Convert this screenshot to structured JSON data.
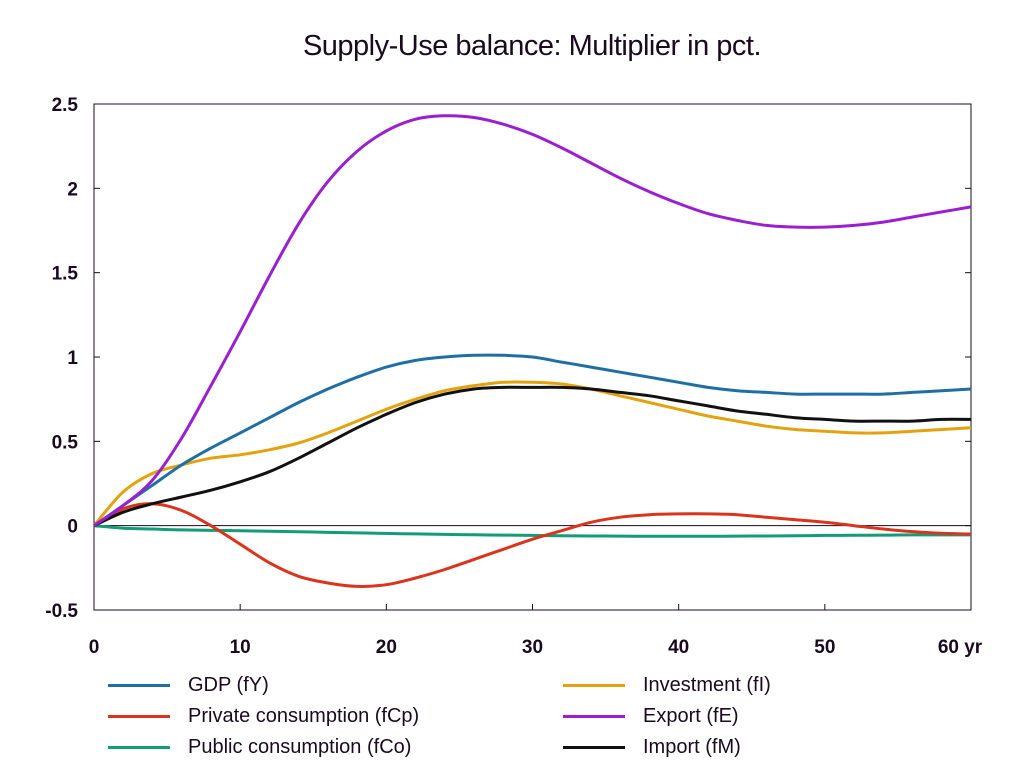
{
  "chart_data": {
    "type": "line",
    "title": "Supply-Use balance: Multiplier in pct.",
    "xlabel": "",
    "ylabel": "",
    "xlim": [
      0,
      60
    ],
    "ylim": [
      -0.5,
      2.5
    ],
    "x_ticks": [
      0,
      10,
      20,
      30,
      40,
      50,
      60
    ],
    "x_tick_labels": [
      "0",
      "10",
      "20",
      "30",
      "40",
      "50",
      "60 yr"
    ],
    "y_ticks": [
      -0.5,
      0,
      0.5,
      1,
      1.5,
      2,
      2.5
    ],
    "y_tick_labels": [
      "-0.5",
      "0",
      "0.5",
      "1",
      "1.5",
      "2",
      "2.5"
    ],
    "grid": false,
    "legend_position": "bottom",
    "zero_line": true,
    "x": [
      0,
      2,
      4,
      6,
      8,
      10,
      12,
      14,
      16,
      18,
      20,
      22,
      24,
      26,
      28,
      30,
      32,
      34,
      36,
      38,
      40,
      42,
      44,
      46,
      48,
      50,
      52,
      54,
      56,
      58,
      60
    ],
    "series": [
      {
        "name": "GDP (fY)",
        "color": "#1f6fa5",
        "values": [
          0,
          0.12,
          0.24,
          0.36,
          0.46,
          0.55,
          0.64,
          0.73,
          0.81,
          0.88,
          0.94,
          0.98,
          1.0,
          1.01,
          1.01,
          1.0,
          0.97,
          0.94,
          0.91,
          0.88,
          0.85,
          0.82,
          0.8,
          0.79,
          0.78,
          0.78,
          0.78,
          0.78,
          0.79,
          0.8,
          0.81
        ]
      },
      {
        "name": "Investment (fI)",
        "color": "#e3a20e",
        "values": [
          0,
          0.2,
          0.31,
          0.36,
          0.4,
          0.42,
          0.45,
          0.49,
          0.55,
          0.62,
          0.69,
          0.75,
          0.8,
          0.83,
          0.85,
          0.85,
          0.84,
          0.81,
          0.77,
          0.73,
          0.69,
          0.65,
          0.62,
          0.59,
          0.57,
          0.56,
          0.55,
          0.55,
          0.56,
          0.57,
          0.58
        ]
      },
      {
        "name": "Private consumption (fCp)",
        "color": "#d9341c",
        "values": [
          0,
          0.1,
          0.13,
          0.09,
          0.0,
          -0.11,
          -0.22,
          -0.3,
          -0.34,
          -0.36,
          -0.35,
          -0.31,
          -0.26,
          -0.2,
          -0.14,
          -0.08,
          -0.03,
          0.02,
          0.05,
          0.065,
          0.07,
          0.07,
          0.065,
          0.05,
          0.035,
          0.02,
          0.0,
          -0.02,
          -0.035,
          -0.045,
          -0.05
        ]
      },
      {
        "name": "Export (fE)",
        "color": "#9b1fd1",
        "values": [
          0,
          0.12,
          0.27,
          0.52,
          0.83,
          1.15,
          1.48,
          1.79,
          2.04,
          2.22,
          2.34,
          2.41,
          2.43,
          2.42,
          2.38,
          2.32,
          2.24,
          2.15,
          2.06,
          1.98,
          1.91,
          1.85,
          1.81,
          1.78,
          1.77,
          1.77,
          1.78,
          1.8,
          1.83,
          1.86,
          1.89
        ]
      },
      {
        "name": "Public consumption (fCo)",
        "color": "#129c78",
        "values": [
          0,
          -0.015,
          -0.02,
          -0.025,
          -0.028,
          -0.03,
          -0.033,
          -0.036,
          -0.04,
          -0.043,
          -0.046,
          -0.049,
          -0.052,
          -0.054,
          -0.056,
          -0.058,
          -0.06,
          -0.061,
          -0.062,
          -0.063,
          -0.063,
          -0.063,
          -0.062,
          -0.061,
          -0.06,
          -0.058,
          -0.057,
          -0.056,
          -0.055,
          -0.055,
          -0.055
        ]
      },
      {
        "name": "Import (fM)",
        "color": "#111111",
        "values": [
          0,
          0.08,
          0.13,
          0.17,
          0.21,
          0.26,
          0.32,
          0.4,
          0.49,
          0.58,
          0.66,
          0.73,
          0.78,
          0.81,
          0.82,
          0.82,
          0.82,
          0.81,
          0.79,
          0.77,
          0.74,
          0.71,
          0.68,
          0.66,
          0.64,
          0.63,
          0.62,
          0.62,
          0.62,
          0.63,
          0.63
        ]
      }
    ]
  },
  "legend_items": [
    {
      "label": "GDP (fY)",
      "color": "#1f6fa5"
    },
    {
      "label": "Investment (fI)",
      "color": "#e3a20e"
    },
    {
      "label": "Private consumption (fCp)",
      "color": "#d9341c"
    },
    {
      "label": "Export (fE)",
      "color": "#9b1fd1"
    },
    {
      "label": "Public consumption (fCo)",
      "color": "#129c78"
    },
    {
      "label": "Import (fM)",
      "color": "#111111"
    }
  ]
}
